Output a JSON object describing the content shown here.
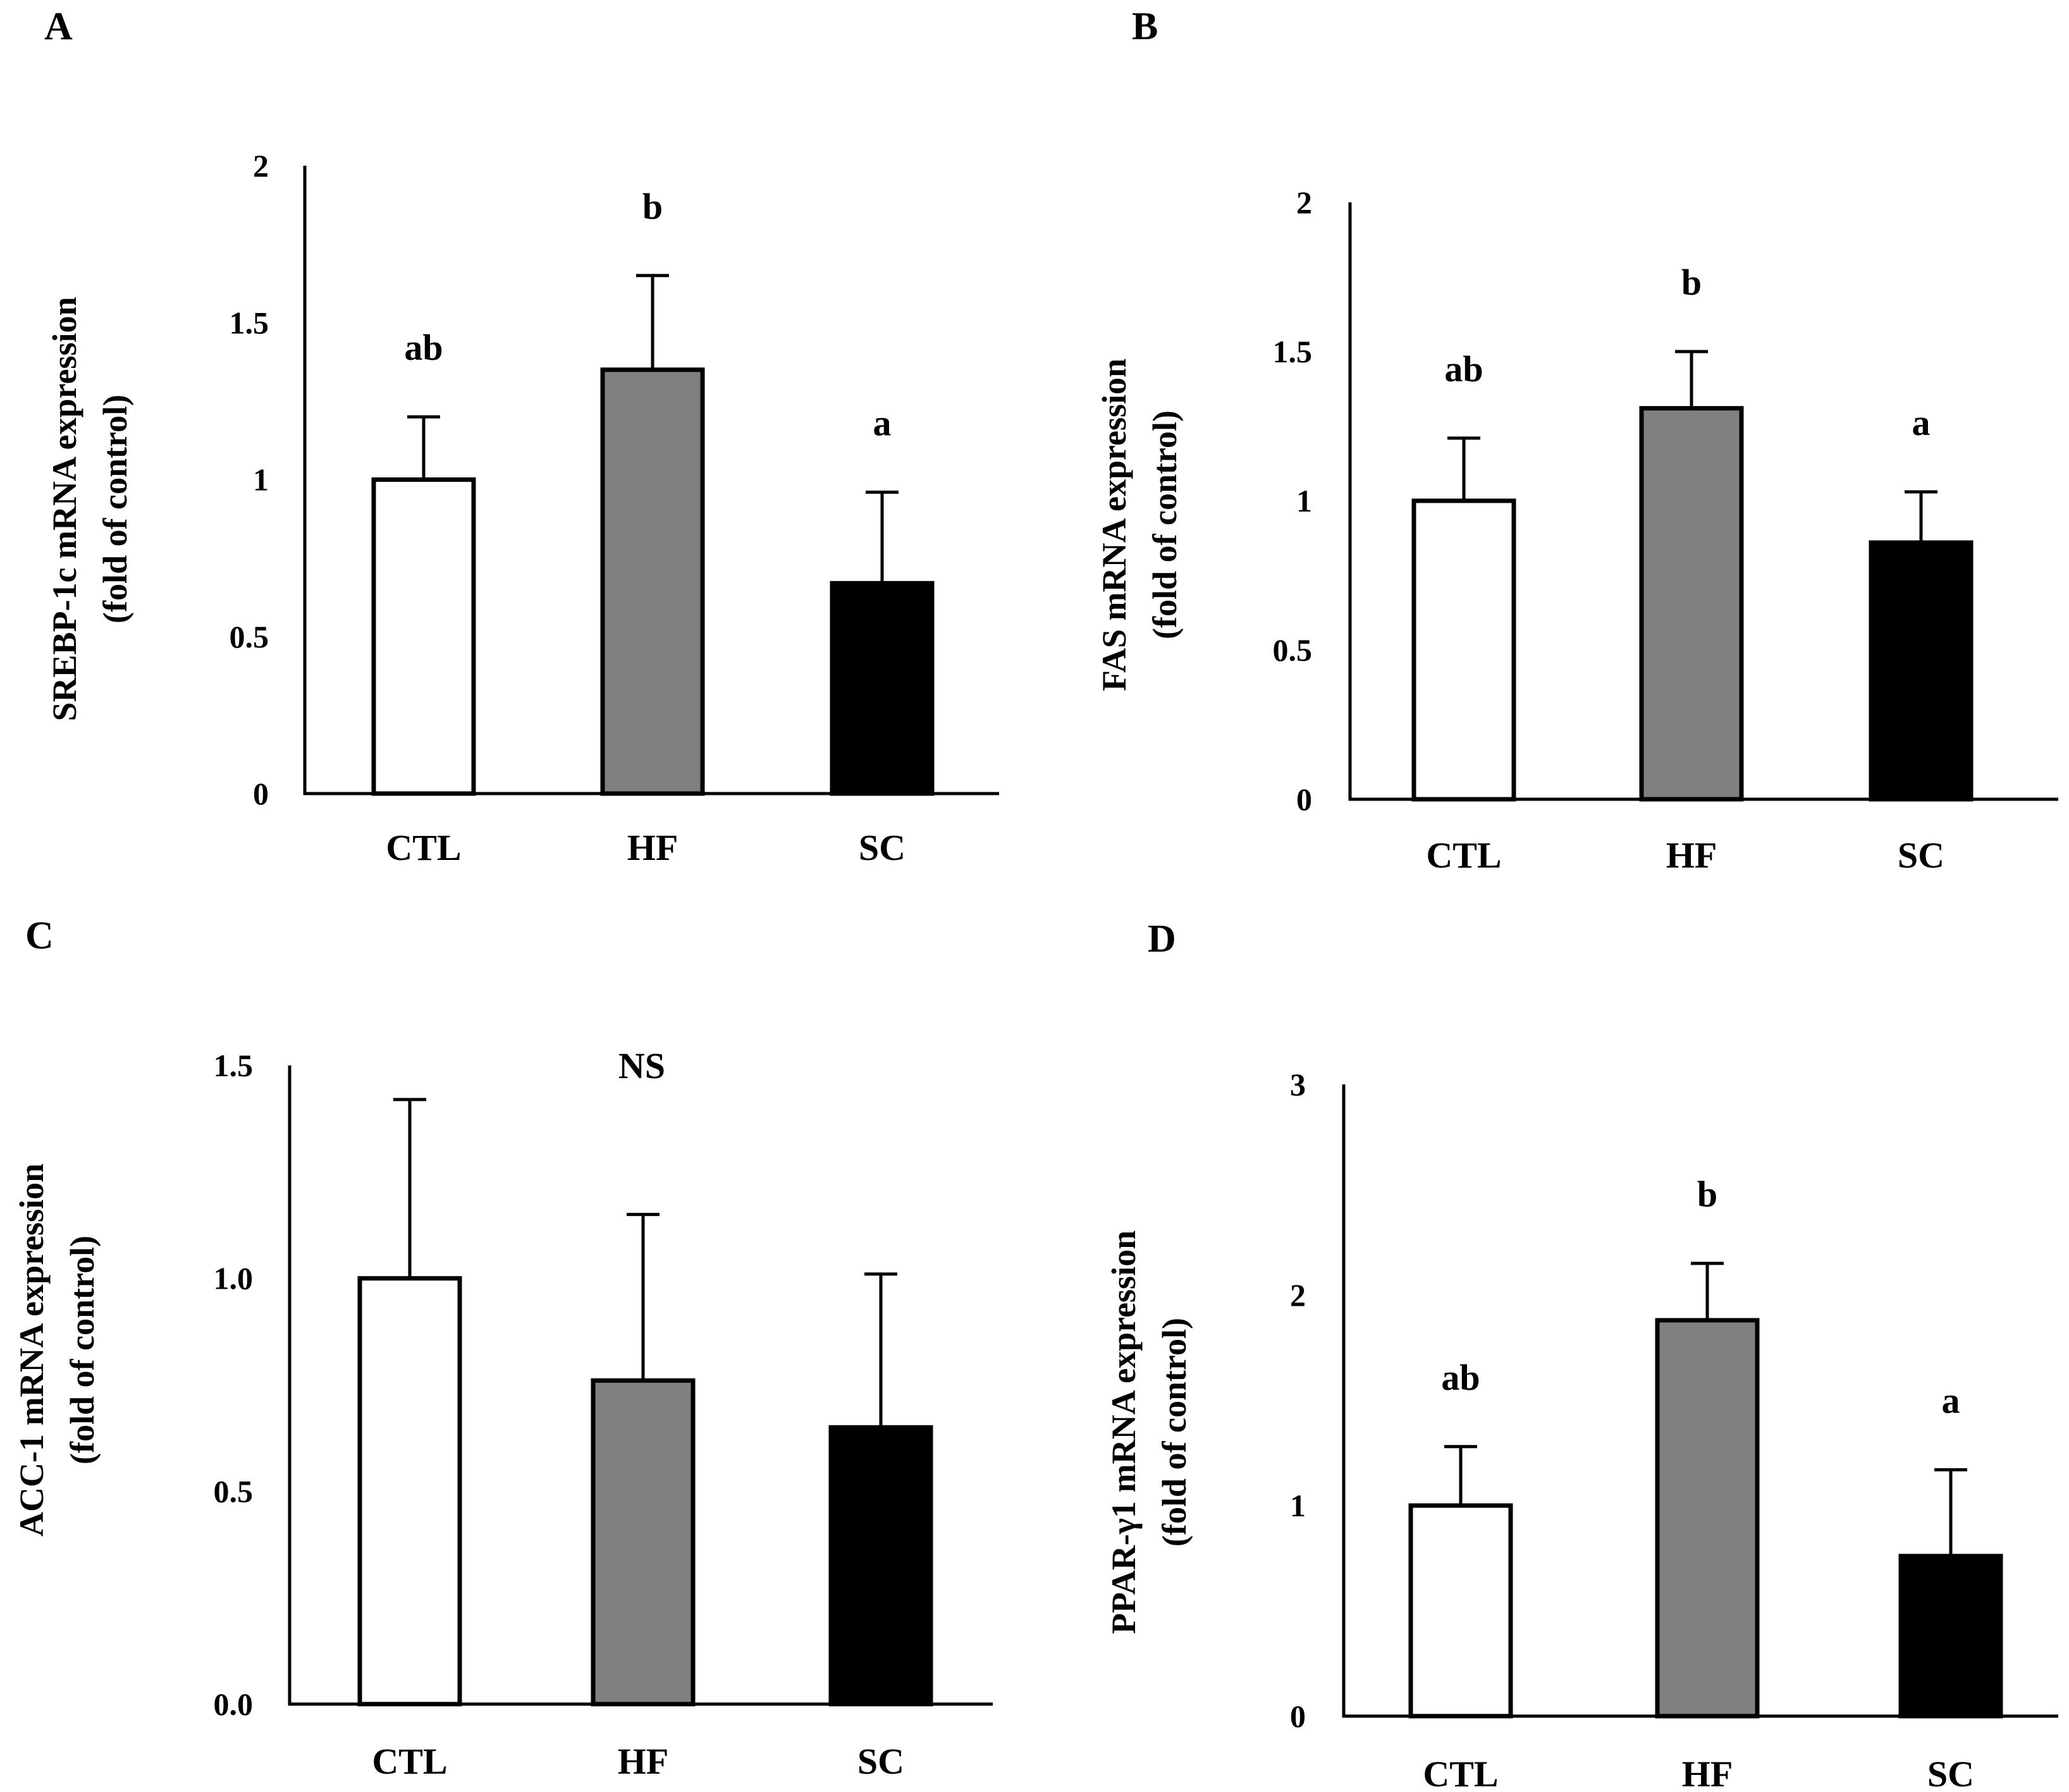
{
  "colors": {
    "CTL": "#ffffff",
    "HF": "#808080",
    "SC": "#000000"
  },
  "chart_data": [
    {
      "panel": "A",
      "type": "bar",
      "ylabel_line1": "SREBP-1c mRNA expression",
      "ylabel_line2": "(fold of control)",
      "ylim": [
        0,
        2
      ],
      "ticks": [
        "0",
        "0.5",
        "1",
        "1.5",
        "2"
      ],
      "tick_values": [
        0,
        0.5,
        1,
        1.5,
        2
      ],
      "categories": [
        "CTL",
        "HF",
        "SC"
      ],
      "values": [
        1.0,
        1.35,
        0.67
      ],
      "errors": [
        0.2,
        0.3,
        0.29
      ],
      "annotations": [
        "ab",
        "b",
        "a"
      ]
    },
    {
      "panel": "B",
      "type": "bar",
      "ylabel_line1": "FAS mRNA expression",
      "ylabel_line2": "(fold of control)",
      "ylim": [
        0,
        2
      ],
      "ticks": [
        "0",
        "0.5",
        "1",
        "1.5",
        "2"
      ],
      "tick_values": [
        0,
        0.5,
        1,
        1.5,
        2
      ],
      "categories": [
        "CTL",
        "HF",
        "SC"
      ],
      "values": [
        1.0,
        1.31,
        0.86
      ],
      "errors": [
        0.21,
        0.19,
        0.17
      ],
      "annotations": [
        "ab",
        "b",
        "a"
      ]
    },
    {
      "panel": "C",
      "type": "bar",
      "ylabel_line1": "ACC-1 mRNA expression",
      "ylabel_line2": "(fold of control)",
      "ylim": [
        0,
        1.5
      ],
      "ticks": [
        "0.0",
        "0.5",
        "1.0",
        "1.5"
      ],
      "tick_values": [
        0,
        0.5,
        1.0,
        1.5
      ],
      "categories": [
        "CTL",
        "HF",
        "SC"
      ],
      "values": [
        1.0,
        0.76,
        0.65
      ],
      "errors": [
        0.42,
        0.39,
        0.36
      ],
      "annotation_center": "NS"
    },
    {
      "panel": "D",
      "type": "bar",
      "ylabel_line1": "PPAR-γ1 mRNA expression",
      "ylabel_line2": "(fold of control)",
      "ylim": [
        0,
        3
      ],
      "ticks": [
        "0",
        "1",
        "2",
        "3"
      ],
      "tick_values": [
        0,
        1,
        2,
        3
      ],
      "categories": [
        "CTL",
        "HF",
        "SC"
      ],
      "values": [
        1.0,
        1.88,
        0.76
      ],
      "errors": [
        0.28,
        0.27,
        0.41
      ],
      "annotations": [
        "ab",
        "b",
        "a"
      ]
    }
  ]
}
